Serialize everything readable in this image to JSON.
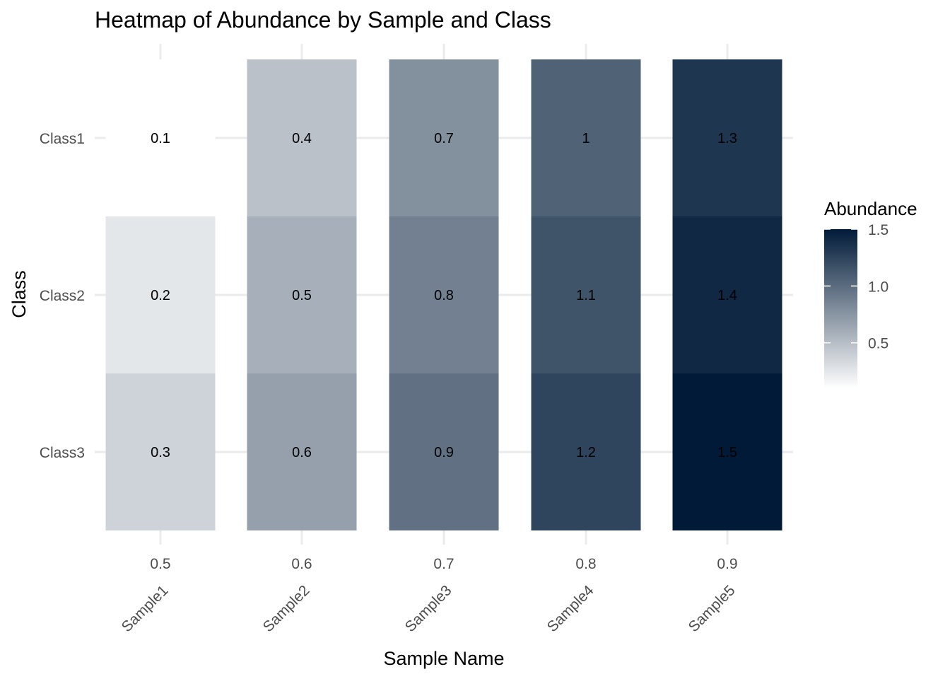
{
  "chart_data": {
    "type": "heatmap",
    "title": "Heatmap of Abundance by Sample and Class",
    "xlabel": "Sample Name",
    "ylabel": "Class",
    "x_tick_labels": [
      "0.5",
      "0.6",
      "0.7",
      "0.8",
      "0.9"
    ],
    "x_values": [
      0.5,
      0.6,
      0.7,
      0.8,
      0.9
    ],
    "x_categories": [
      "Sample1",
      "Sample2",
      "Sample3",
      "Sample4",
      "Sample5"
    ],
    "y_categories": [
      "Class1",
      "Class2",
      "Class3"
    ],
    "cells": [
      {
        "sample": "Sample1",
        "x": 0.5,
        "class": "Class1",
        "value": 0.1,
        "label": "0.1"
      },
      {
        "sample": "Sample1",
        "x": 0.5,
        "class": "Class2",
        "value": 0.2,
        "label": "0.2"
      },
      {
        "sample": "Sample1",
        "x": 0.5,
        "class": "Class3",
        "value": 0.3,
        "label": "0.3"
      },
      {
        "sample": "Sample2",
        "x": 0.6,
        "class": "Class1",
        "value": 0.4,
        "label": "0.4"
      },
      {
        "sample": "Sample2",
        "x": 0.6,
        "class": "Class2",
        "value": 0.5,
        "label": "0.5"
      },
      {
        "sample": "Sample2",
        "x": 0.6,
        "class": "Class3",
        "value": 0.6,
        "label": "0.6"
      },
      {
        "sample": "Sample3",
        "x": 0.7,
        "class": "Class1",
        "value": 0.7,
        "label": "0.7"
      },
      {
        "sample": "Sample3",
        "x": 0.7,
        "class": "Class2",
        "value": 0.8,
        "label": "0.8"
      },
      {
        "sample": "Sample3",
        "x": 0.7,
        "class": "Class3",
        "value": 0.9,
        "label": "0.9"
      },
      {
        "sample": "Sample4",
        "x": 0.8,
        "class": "Class1",
        "value": 1.0,
        "label": "1"
      },
      {
        "sample": "Sample4",
        "x": 0.8,
        "class": "Class2",
        "value": 1.1,
        "label": "1.1"
      },
      {
        "sample": "Sample4",
        "x": 0.8,
        "class": "Class3",
        "value": 1.2,
        "label": "1.2"
      },
      {
        "sample": "Sample5",
        "x": 0.9,
        "class": "Class1",
        "value": 1.3,
        "label": "1.3"
      },
      {
        "sample": "Sample5",
        "x": 0.9,
        "class": "Class2",
        "value": 1.4,
        "label": "1.4"
      },
      {
        "sample": "Sample5",
        "x": 0.9,
        "class": "Class3",
        "value": 1.5,
        "label": "1.5"
      }
    ],
    "legend": {
      "title": "Abundance",
      "placement": "right",
      "ticks": [
        {
          "value": 0.5,
          "label": "0.5"
        },
        {
          "value": 1.0,
          "label": "1.0"
        },
        {
          "value": 1.5,
          "label": "1.5"
        }
      ],
      "range": [
        0.1,
        1.5
      ]
    },
    "colors": {
      "low": "#ffffff",
      "high": "#001a38"
    },
    "grid": true
  }
}
